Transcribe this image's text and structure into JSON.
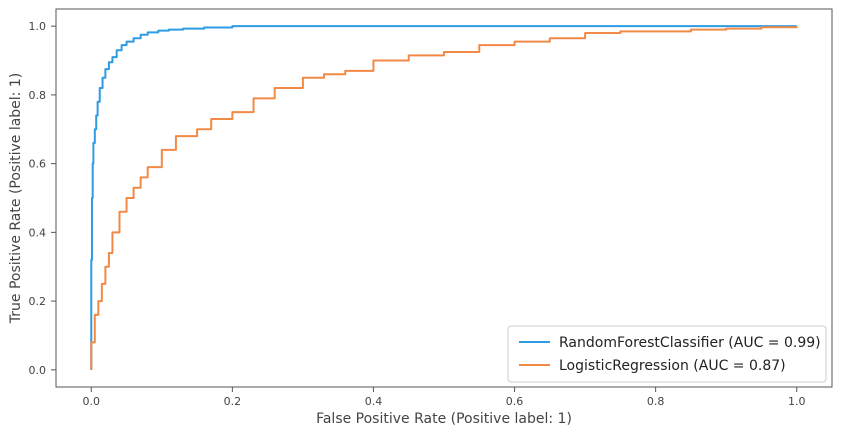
{
  "chart_data": {
    "type": "line",
    "title": "",
    "xlabel": "False Positive Rate (Positive label: 1)",
    "ylabel": "True Positive Rate (Positive label: 1)",
    "xlim": [
      -0.05,
      1.05
    ],
    "ylim": [
      -0.05,
      1.05
    ],
    "x_ticks": [
      "0.0",
      "0.2",
      "0.4",
      "0.6",
      "0.8",
      "1.0"
    ],
    "y_ticks": [
      "0.0",
      "0.2",
      "0.4",
      "0.6",
      "0.8",
      "1.0"
    ],
    "grid": false,
    "legend_position": "lower-right",
    "series": [
      {
        "name": "RandomForestClassifier (AUC = 0.99)",
        "color": "#2f9be3",
        "step": true,
        "x": [
          0.0,
          0.0,
          0.001,
          0.002,
          0.003,
          0.005,
          0.007,
          0.009,
          0.012,
          0.016,
          0.02,
          0.025,
          0.03,
          0.036,
          0.043,
          0.05,
          0.06,
          0.07,
          0.08,
          0.095,
          0.11,
          0.13,
          0.16,
          0.2,
          0.3,
          0.5,
          0.7,
          0.9,
          1.0
        ],
        "y": [
          0.0,
          0.32,
          0.5,
          0.6,
          0.66,
          0.7,
          0.74,
          0.78,
          0.82,
          0.85,
          0.875,
          0.895,
          0.91,
          0.93,
          0.945,
          0.955,
          0.965,
          0.975,
          0.982,
          0.987,
          0.99,
          0.993,
          0.996,
          1.0,
          1.0,
          1.0,
          1.0,
          1.0,
          1.0
        ]
      },
      {
        "name": "LogisticRegression (AUC = 0.87)",
        "color": "#f28a47",
        "step": true,
        "x": [
          0.0,
          0.0,
          0.005,
          0.01,
          0.015,
          0.02,
          0.025,
          0.03,
          0.04,
          0.05,
          0.06,
          0.07,
          0.08,
          0.1,
          0.12,
          0.15,
          0.17,
          0.2,
          0.23,
          0.26,
          0.3,
          0.33,
          0.36,
          0.4,
          0.45,
          0.5,
          0.55,
          0.6,
          0.65,
          0.7,
          0.75,
          0.8,
          0.85,
          0.9,
          0.95,
          1.0
        ],
        "y": [
          0.0,
          0.08,
          0.16,
          0.2,
          0.25,
          0.3,
          0.34,
          0.4,
          0.46,
          0.5,
          0.53,
          0.56,
          0.59,
          0.64,
          0.68,
          0.7,
          0.73,
          0.75,
          0.79,
          0.82,
          0.85,
          0.86,
          0.87,
          0.9,
          0.915,
          0.925,
          0.945,
          0.955,
          0.965,
          0.98,
          0.985,
          0.985,
          0.99,
          0.993,
          0.997,
          1.0
        ]
      }
    ]
  }
}
